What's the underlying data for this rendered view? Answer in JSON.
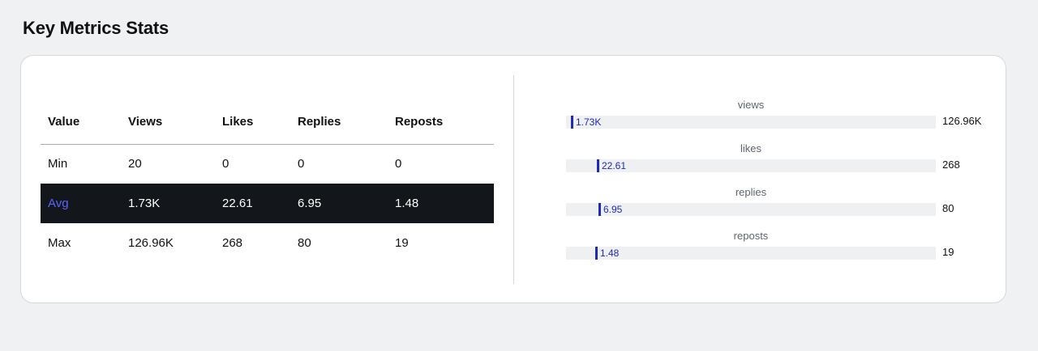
{
  "page": {
    "title": "Key Metrics Stats"
  },
  "table": {
    "headers": [
      "Value",
      "Views",
      "Likes",
      "Replies",
      "Reposts"
    ],
    "rows": [
      {
        "label": "Min",
        "values": [
          "20",
          "0",
          "0",
          "0"
        ]
      },
      {
        "label": "Avg",
        "values": [
          "1.73K",
          "22.61",
          "6.95",
          "1.48"
        ]
      },
      {
        "label": "Max",
        "values": [
          "126.96K",
          "268",
          "80",
          "19"
        ]
      }
    ]
  },
  "ranges": [
    {
      "name": "views",
      "min": "20",
      "avg": "1.73K",
      "max": "126.96K",
      "avg_fraction": 0.0135
    },
    {
      "name": "likes",
      "min": "0",
      "avg": "22.61",
      "max": "268",
      "avg_fraction": 0.0844
    },
    {
      "name": "replies",
      "min": "0",
      "avg": "6.95",
      "max": "80",
      "avg_fraction": 0.0869
    },
    {
      "name": "reposts",
      "min": "0",
      "avg": "1.48",
      "max": "19",
      "avg_fraction": 0.0779
    }
  ],
  "colors": {
    "avg_row_bg": "#13161b",
    "avg_label": "#5b63ff",
    "marker": "#1e2ab8",
    "track": "#eef0f2",
    "page_bg": "#f0f1f3"
  }
}
